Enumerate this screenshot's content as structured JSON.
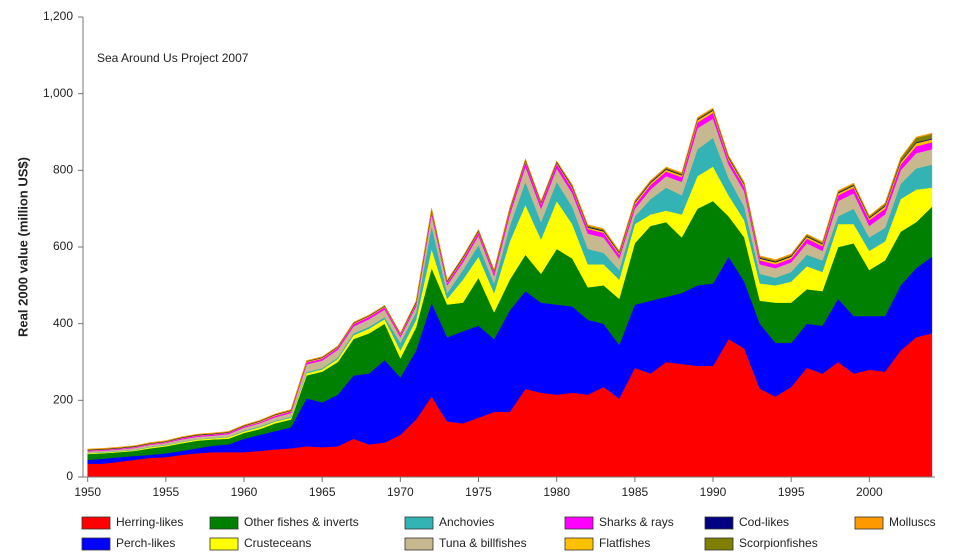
{
  "chart_data": {
    "type": "stacked-area",
    "annotation": "Sea Around Us Project 2007",
    "y_label": "Real 2000 value (million US$)",
    "x": [
      1950,
      1951,
      1952,
      1953,
      1954,
      1955,
      1956,
      1957,
      1958,
      1959,
      1960,
      1961,
      1962,
      1963,
      1964,
      1965,
      1966,
      1967,
      1968,
      1969,
      1970,
      1971,
      1972,
      1973,
      1974,
      1975,
      1976,
      1977,
      1978,
      1979,
      1980,
      1981,
      1982,
      1983,
      1984,
      1985,
      1986,
      1987,
      1988,
      1989,
      1990,
      1991,
      1992,
      1993,
      1994,
      1995,
      1996,
      1997,
      1998,
      1999,
      2000,
      2001,
      2002,
      2003,
      2004
    ],
    "xlim": [
      1949.7,
      2004.2
    ],
    "xticks": [
      1950,
      1955,
      1960,
      1965,
      1970,
      1975,
      1980,
      1985,
      1990,
      1995,
      2000
    ],
    "ylim": [
      0,
      1200
    ],
    "yticks": [
      0,
      200,
      400,
      600,
      800,
      {
        "value": 1000,
        "label": "1,000"
      },
      {
        "value": 1200,
        "label": "1,200"
      }
    ],
    "series": [
      {
        "name": "Herring-likes",
        "color": "#ff0000",
        "values": [
          35,
          35,
          40,
          45,
          50,
          52,
          58,
          62,
          65,
          65,
          65,
          68,
          72,
          75,
          80,
          78,
          80,
          100,
          85,
          90,
          110,
          150,
          210,
          145,
          140,
          155,
          170,
          170,
          230,
          220,
          215,
          220,
          215,
          235,
          205,
          285,
          270,
          300,
          295,
          290,
          290,
          360,
          335,
          230,
          210,
          235,
          285,
          270,
          300,
          270,
          280,
          275,
          330,
          365,
          375
        ]
      },
      {
        "name": "Perch-likes",
        "color": "#0000ff",
        "values": [
          10,
          13,
          12,
          10,
          8,
          10,
          10,
          13,
          17,
          20,
          35,
          42,
          48,
          55,
          125,
          117,
          135,
          165,
          185,
          215,
          150,
          180,
          245,
          220,
          240,
          240,
          190,
          265,
          255,
          235,
          235,
          225,
          195,
          165,
          140,
          165,
          190,
          170,
          185,
          210,
          215,
          215,
          175,
          170,
          140,
          115,
          115,
          125,
          165,
          150,
          140,
          145,
          170,
          180,
          200
        ]
      },
      {
        "name": "Other fishes & inverts",
        "color": "#008000",
        "values": [
          15,
          14,
          13,
          13,
          17,
          18,
          20,
          20,
          16,
          15,
          15,
          15,
          20,
          20,
          60,
          80,
          85,
          95,
          105,
          95,
          50,
          60,
          90,
          85,
          75,
          125,
          70,
          80,
          95,
          75,
          145,
          125,
          85,
          100,
          120,
          160,
          195,
          195,
          145,
          200,
          215,
          105,
          115,
          60,
          105,
          105,
          90,
          90,
          135,
          190,
          120,
          145,
          140,
          120,
          130
        ]
      },
      {
        "name": "Crusteceans",
        "color": "#ffff00",
        "values": [
          2,
          2,
          2,
          2,
          3,
          3,
          3,
          3,
          3,
          4,
          4,
          5,
          5,
          5,
          6,
          6,
          8,
          10,
          12,
          12,
          20,
          20,
          50,
          15,
          60,
          55,
          50,
          100,
          130,
          90,
          125,
          90,
          60,
          55,
          50,
          50,
          30,
          30,
          60,
          85,
          90,
          55,
          45,
          45,
          45,
          55,
          60,
          50,
          60,
          50,
          50,
          50,
          85,
          85,
          50
        ]
      },
      {
        "name": "Anchovies",
        "color": "#33b3b3",
        "values": [
          1,
          1,
          1,
          1,
          1,
          1,
          1,
          1,
          1,
          1,
          2,
          2,
          2,
          2,
          3,
          3,
          4,
          5,
          5,
          5,
          20,
          20,
          60,
          15,
          25,
          30,
          25,
          40,
          60,
          45,
          50,
          45,
          40,
          30,
          25,
          20,
          40,
          60,
          50,
          70,
          75,
          45,
          35,
          25,
          20,
          25,
          30,
          30,
          20,
          40,
          35,
          35,
          40,
          55,
          60
        ]
      },
      {
        "name": "Tuna & billfishes",
        "color": "#c8b890",
        "values": [
          4,
          4,
          4,
          5,
          5,
          5,
          6,
          6,
          6,
          7,
          8,
          8,
          9,
          10,
          20,
          20,
          20,
          18,
          20,
          20,
          15,
          15,
          30,
          20,
          20,
          25,
          20,
          30,
          40,
          35,
          35,
          35,
          40,
          40,
          30,
          20,
          25,
          30,
          35,
          55,
          50,
          35,
          40,
          25,
          25,
          25,
          30,
          25,
          40,
          40,
          30,
          35,
          35,
          40,
          40
        ]
      },
      {
        "name": "Sharks & rays",
        "color": "#ff00ff",
        "values": [
          2,
          2,
          2,
          2,
          2,
          2,
          3,
          3,
          3,
          3,
          3,
          3,
          4,
          4,
          5,
          5,
          5,
          6,
          6,
          6,
          6,
          6,
          8,
          6,
          8,
          8,
          8,
          10,
          12,
          12,
          12,
          12,
          12,
          12,
          10,
          10,
          12,
          12,
          12,
          15,
          15,
          12,
          12,
          10,
          10,
          10,
          12,
          12,
          15,
          15,
          15,
          15,
          15,
          18,
          18
        ]
      },
      {
        "name": "Flatfishes",
        "color": "#ffc000",
        "values": [
          1,
          1,
          1,
          1,
          1,
          1,
          1,
          1,
          1,
          1,
          1,
          2,
          2,
          2,
          2,
          2,
          2,
          2,
          2,
          2,
          2,
          3,
          3,
          3,
          3,
          3,
          3,
          3,
          3,
          3,
          3,
          4,
          4,
          4,
          4,
          5,
          5,
          5,
          5,
          6,
          6,
          5,
          5,
          5,
          5,
          5,
          5,
          5,
          5,
          5,
          5,
          6,
          6,
          8,
          8
        ]
      },
      {
        "name": "Cod-likes",
        "color": "#000080",
        "values": [
          1,
          1,
          1,
          1,
          1,
          1,
          1,
          1,
          1,
          1,
          1,
          1,
          1,
          1,
          1,
          1,
          1,
          1,
          1,
          1,
          1,
          2,
          2,
          2,
          2,
          2,
          2,
          2,
          2,
          2,
          2,
          2,
          2,
          2,
          2,
          2,
          2,
          2,
          2,
          2,
          2,
          2,
          2,
          2,
          2,
          2,
          2,
          2,
          2,
          2,
          2,
          2,
          2,
          2,
          2
        ]
      },
      {
        "name": "Scorpionfishes",
        "color": "#808000",
        "values": [
          1,
          1,
          1,
          1,
          1,
          1,
          1,
          1,
          1,
          1,
          1,
          1,
          1,
          1,
          1,
          1,
          1,
          1,
          1,
          1,
          1,
          2,
          2,
          2,
          2,
          2,
          2,
          2,
          2,
          2,
          2,
          3,
          3,
          3,
          3,
          3,
          3,
          3,
          3,
          3,
          3,
          3,
          3,
          3,
          3,
          3,
          3,
          3,
          3,
          3,
          3,
          5,
          8,
          12,
          12
        ]
      },
      {
        "name": "Molluscs",
        "color": "#ff9900",
        "values": [
          1,
          1,
          1,
          1,
          1,
          1,
          1,
          1,
          1,
          1,
          1,
          1,
          1,
          1,
          1,
          1,
          1,
          1,
          1,
          1,
          1,
          1,
          1,
          1,
          1,
          1,
          1,
          1,
          1,
          1,
          1,
          2,
          2,
          2,
          2,
          2,
          2,
          2,
          2,
          2,
          2,
          2,
          2,
          2,
          2,
          2,
          2,
          2,
          2,
          2,
          2,
          2,
          2,
          2,
          2
        ]
      }
    ]
  }
}
